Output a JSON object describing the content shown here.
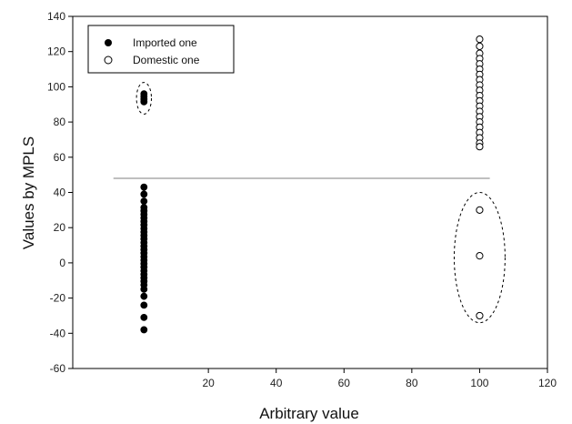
{
  "chart_data": {
    "type": "scatter",
    "xlabel": "Arbitrary value",
    "ylabel": "Values by MPLS",
    "xlim": [
      -20,
      120
    ],
    "ylim": [
      -60,
      140
    ],
    "x_ticks": [
      "20",
      "40",
      "60",
      "80",
      "100",
      "120"
    ],
    "y_ticks": [
      "-60",
      "-40",
      "-20",
      "0",
      "20",
      "40",
      "60",
      "80",
      "100",
      "120",
      "140"
    ],
    "grid": false,
    "legend_position": "top-left",
    "threshold_line": {
      "y": 48,
      "x_from": -8,
      "x_to": 103
    },
    "series": [
      {
        "name": "Imported one",
        "marker": "filled-circle",
        "color": "#000000",
        "points": [
          [
            1,
            96
          ],
          [
            1,
            94.5
          ],
          [
            1,
            93
          ],
          [
            1,
            91.5
          ],
          [
            1,
            43
          ],
          [
            1,
            39
          ],
          [
            1,
            35
          ],
          [
            1,
            31.5
          ],
          [
            1,
            29.5
          ],
          [
            1,
            27.5
          ],
          [
            1,
            25.5
          ],
          [
            1,
            23.5
          ],
          [
            1,
            21.5
          ],
          [
            1,
            19.5
          ],
          [
            1,
            17.5
          ],
          [
            1,
            15.5
          ],
          [
            1,
            13.5
          ],
          [
            1,
            11.5
          ],
          [
            1,
            9.5
          ],
          [
            1,
            7.5
          ],
          [
            1,
            5.5
          ],
          [
            1,
            3.5
          ],
          [
            1,
            1.5
          ],
          [
            1,
            -0.5
          ],
          [
            1,
            -2.5
          ],
          [
            1,
            -4.5
          ],
          [
            1,
            -6.5
          ],
          [
            1,
            -8.5
          ],
          [
            1,
            -10.5
          ],
          [
            1,
            -12.5
          ],
          [
            1,
            -15
          ],
          [
            1,
            -19
          ],
          [
            1,
            -24
          ],
          [
            1,
            -31
          ],
          [
            1,
            -38
          ]
        ]
      },
      {
        "name": "Domestic one",
        "marker": "open-circle",
        "color": "#000000",
        "points": [
          [
            100,
            127
          ],
          [
            100,
            123
          ],
          [
            100,
            119
          ],
          [
            100,
            116
          ],
          [
            100,
            113
          ],
          [
            100,
            110
          ],
          [
            100,
            107
          ],
          [
            100,
            104
          ],
          [
            100,
            101
          ],
          [
            100,
            98
          ],
          [
            100,
            95
          ],
          [
            100,
            92
          ],
          [
            100,
            89
          ],
          [
            100,
            86
          ],
          [
            100,
            83
          ],
          [
            100,
            80
          ],
          [
            100,
            77
          ],
          [
            100,
            74
          ],
          [
            100,
            71
          ],
          [
            100,
            68
          ],
          [
            100,
            66
          ],
          [
            100,
            30
          ],
          [
            100,
            4
          ],
          [
            100,
            -30
          ]
        ]
      }
    ],
    "annotations": [
      {
        "type": "dashed-ellipse",
        "center": [
          1,
          93.5
        ],
        "rx": 2.2,
        "ry": 9
      },
      {
        "type": "dashed-ellipse",
        "center": [
          100,
          3
        ],
        "rx": 7.5,
        "ry": 37
      }
    ]
  }
}
